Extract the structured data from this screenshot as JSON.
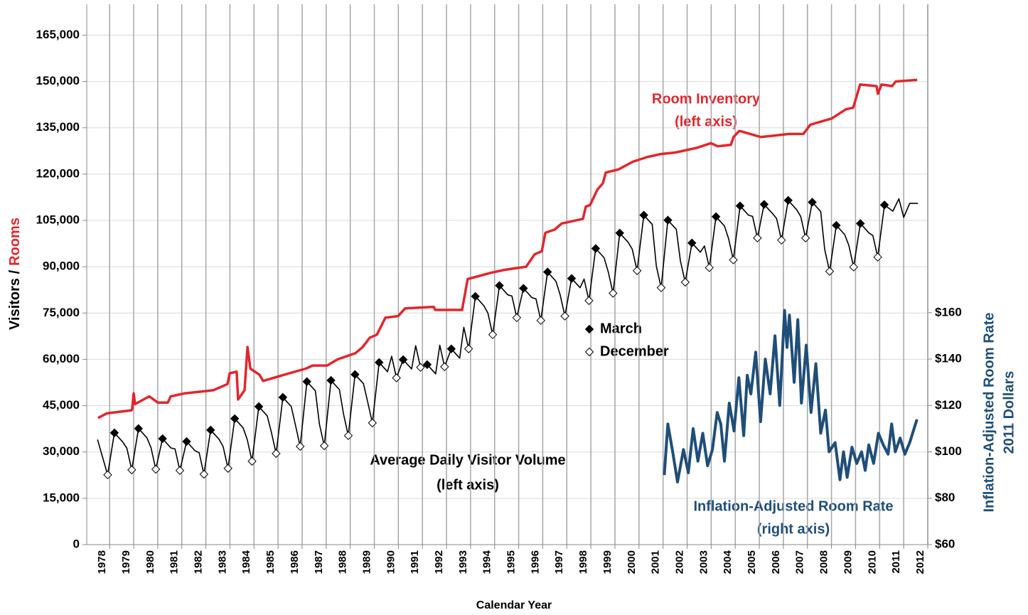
{
  "chart_data": {
    "type": "line",
    "x_label": "Calendar Year",
    "y_label": [
      "Visitors /",
      "Rooms"
    ],
    "y2_label": [
      "Inflation-Adjusted Room Rate",
      "2011 Dollars"
    ],
    "xlim": [
      1977.05,
      2012
    ],
    "xticks": [
      1978,
      1979,
      1980,
      1981,
      1982,
      1983,
      1984,
      1985,
      1986,
      1987,
      1988,
      1989,
      1990,
      1991,
      1992,
      1993,
      1994,
      1995,
      1996,
      1997,
      1998,
      1999,
      2000,
      2001,
      2002,
      2003,
      2004,
      2005,
      2006,
      2007,
      2008,
      2009,
      2010,
      2011,
      2012
    ],
    "ylim": [
      0,
      175000
    ],
    "yticks": [
      0,
      {
        "value": 15000,
        "label": "15,000"
      },
      {
        "value": 30000,
        "label": "30,000"
      },
      {
        "value": 45000,
        "label": "45,000"
      },
      {
        "value": 60000,
        "label": "60,000"
      },
      {
        "value": 75000,
        "label": "75,000"
      },
      {
        "value": 90000,
        "label": "90,000"
      },
      {
        "value": 105000,
        "label": "105,000"
      },
      {
        "value": 120000,
        "label": "120,000"
      },
      {
        "value": 135000,
        "label": "135,000"
      },
      {
        "value": 150000,
        "label": "150,000"
      },
      {
        "value": 165000,
        "label": "165,000"
      }
    ],
    "y2lim": [
      60,
      293
    ],
    "y2ticks": [
      {
        "value": 60,
        "label": "$60"
      },
      {
        "value": 80,
        "label": "$80"
      },
      {
        "value": 100,
        "label": "$100"
      },
      {
        "value": 120,
        "label": "$120"
      },
      {
        "value": 140,
        "label": "$140"
      },
      {
        "value": 160,
        "label": "$160"
      }
    ],
    "grid": true,
    "annotations": [
      "(left axis)",
      "(left axis)",
      "(right axis)"
    ],
    "series": [
      {
        "name": "Room Inventory",
        "color": "#e3262c",
        "style": "line",
        "x": [
          1977.52,
          1977.88,
          1978.91,
          1978.94,
          1979.0,
          1979.06,
          1979.65,
          1980.0,
          1980.42,
          1980.54,
          1981.13,
          1982.31,
          1982.9,
          1982.99,
          1983.28,
          1983.34,
          1983.61,
          1983.73,
          1983.85,
          1984.23,
          1984.38,
          1985.26,
          1986.15,
          1986.44,
          1987.04,
          1987.48,
          1988.22,
          1988.52,
          1988.81,
          1989.11,
          1989.46,
          1989.99,
          1990.28,
          1991.47,
          1991.53,
          1992.65,
          1992.88,
          1993.83,
          1994.42,
          1995.31,
          1995.66,
          1995.96,
          1996.11,
          1996.49,
          1996.79,
          1997.67,
          1997.79,
          1997.97,
          1998.27,
          1998.5,
          1998.62,
          1999.15,
          1999.74,
          2000.33,
          2000.92,
          2001.51,
          2002.4,
          2002.99,
          2003.28,
          2003.82,
          2003.93,
          2004.17,
          2005.06,
          2006.24,
          2006.83,
          2007.12,
          2008.01,
          2008.6,
          2008.9,
          2009.19,
          2009.87,
          2009.93,
          2010.08,
          2010.52,
          2010.67,
          2011.56
        ],
        "values": [
          41000,
          42500,
          43500,
          44000,
          49000,
          45500,
          48000,
          46000,
          46000,
          48000,
          49000,
          50000,
          52000,
          55500,
          56000,
          47000,
          50000,
          64000,
          57000,
          55000,
          53000,
          55000,
          57000,
          58000,
          58000,
          60000,
          62000,
          64000,
          67000,
          68000,
          73500,
          74000,
          76500,
          77000,
          76000,
          76000,
          86000,
          88000,
          89000,
          90000,
          94000,
          95000,
          101000,
          102000,
          104000,
          105500,
          109500,
          110000,
          115000,
          117000,
          120500,
          121500,
          124000,
          125500,
          126500,
          127000,
          128500,
          130000,
          129000,
          129500,
          132000,
          134000,
          132000,
          133000,
          133000,
          136000,
          138000,
          141000,
          141500,
          149000,
          148500,
          146000,
          149000,
          148500,
          150000,
          150500
        ]
      },
      {
        "name": "Average Daily Visitor Volume",
        "color": "#000000",
        "style": "line",
        "x": [
          1977.5,
          1977.92,
          1978.2,
          1978.55,
          1978.72,
          1978.92,
          1979.2,
          1979.55,
          1979.72,
          1979.92,
          1980.2,
          1980.55,
          1980.72,
          1980.92,
          1981.2,
          1981.55,
          1981.72,
          1981.92,
          1982.2,
          1982.55,
          1982.72,
          1982.92,
          1983.2,
          1983.55,
          1983.72,
          1983.92,
          1984.2,
          1984.55,
          1984.72,
          1984.92,
          1985.2,
          1985.55,
          1985.72,
          1985.92,
          1986.2,
          1986.55,
          1986.72,
          1986.92,
          1987.2,
          1987.55,
          1987.72,
          1987.92,
          1988.2,
          1988.55,
          1988.72,
          1988.92,
          1989.2,
          1989.55,
          1989.72,
          1989.92,
          1990.2,
          1990.55,
          1990.72,
          1990.92,
          1991.2,
          1991.55,
          1991.72,
          1991.92,
          1992.2,
          1992.55,
          1992.72,
          1992.92,
          1993.2,
          1993.55,
          1993.72,
          1993.92,
          1994.2,
          1994.55,
          1994.72,
          1994.92,
          1995.2,
          1995.55,
          1995.72,
          1995.92,
          1996.2,
          1996.55,
          1996.72,
          1996.92,
          1997.2,
          1997.55,
          1997.72,
          1997.92,
          1998.2,
          1998.55,
          1998.72,
          1998.92,
          1999.2,
          1999.55,
          1999.72,
          1999.92,
          2000.2,
          2000.55,
          2000.72,
          2000.92,
          2001.2,
          2001.55,
          2001.72,
          2001.92,
          2002.2,
          2002.55,
          2002.72,
          2002.92,
          2003.2,
          2003.55,
          2003.72,
          2003.92,
          2004.2,
          2004.55,
          2004.72,
          2004.92,
          2005.2,
          2005.55,
          2005.72,
          2005.92,
          2006.2,
          2006.55,
          2006.72,
          2006.92,
          2007.2,
          2007.55,
          2007.72,
          2007.92,
          2008.2,
          2008.55,
          2008.72,
          2008.92,
          2009.2,
          2009.55,
          2009.72,
          2009.92,
          2010.2,
          2010.55,
          2010.8,
          2011.0,
          2011.25,
          2011.59
        ],
        "values": [
          34000,
          22600,
          36200,
          33200,
          31200,
          24200,
          37600,
          34600,
          31400,
          24400,
          34300,
          31300,
          31000,
          24000,
          33400,
          30400,
          29800,
          22800,
          37100,
          34100,
          31700,
          24700,
          40800,
          37800,
          34000,
          27000,
          44700,
          41700,
          36500,
          29500,
          47700,
          44700,
          38800,
          31800,
          52800,
          49800,
          39000,
          32000,
          53200,
          50200,
          42300,
          35300,
          55100,
          52100,
          46400,
          39400,
          59000,
          56000,
          61000,
          54000,
          59900,
          56900,
          64400,
          57400,
          58300,
          55300,
          64600,
          57600,
          63400,
          60400,
          70400,
          63400,
          80400,
          77400,
          75000,
          68000,
          83900,
          80900,
          80500,
          73500,
          83000,
          80000,
          79600,
          72600,
          88300,
          85300,
          81000,
          74000,
          86200,
          83200,
          86000,
          79000,
          95900,
          92900,
          88400,
          81400,
          100900,
          97900,
          95700,
          88700,
          106700,
          103700,
          90200,
          83200,
          105100,
          102100,
          92000,
          85000,
          97700,
          94700,
          96700,
          89700,
          106200,
          103200,
          99200,
          92200,
          109700,
          106700,
          106300,
          99300,
          110200,
          107200,
          105600,
          98600,
          111500,
          108500,
          106300,
          99300,
          110900,
          107900,
          95500,
          88500,
          103400,
          100400,
          96900,
          89900,
          104000,
          101000,
          100100,
          93100,
          110000,
          108000,
          112000,
          106000,
          110500,
          110500
        ]
      },
      {
        "name": "March",
        "color": "#000000",
        "style": "markers",
        "marker_fill": "#000000",
        "x": [
          1978.2,
          1979.2,
          1980.2,
          1981.2,
          1982.2,
          1983.2,
          1984.2,
          1985.2,
          1986.2,
          1987.2,
          1988.2,
          1989.2,
          1990.2,
          1991.2,
          1992.2,
          1993.2,
          1994.2,
          1995.2,
          1996.2,
          1997.2,
          1998.2,
          1999.2,
          2000.2,
          2001.2,
          2002.2,
          2003.2,
          2004.2,
          2005.2,
          2006.2,
          2007.2,
          2008.2,
          2009.2,
          2010.2
        ],
        "values": [
          36200,
          37600,
          34300,
          33400,
          37100,
          40800,
          44700,
          47700,
          52800,
          53200,
          55100,
          59000,
          59900,
          58300,
          63400,
          80400,
          83900,
          83000,
          88300,
          86200,
          95900,
          100900,
          106700,
          105100,
          97700,
          106200,
          109700,
          110200,
          111500,
          110900,
          103400,
          104000,
          110000
        ]
      },
      {
        "name": "December",
        "color": "#000000",
        "style": "markers",
        "marker_fill": "#ffffff",
        "x": [
          1977.92,
          1978.92,
          1979.92,
          1980.92,
          1981.92,
          1982.92,
          1983.92,
          1984.92,
          1985.92,
          1986.92,
          1987.92,
          1988.92,
          1989.92,
          1990.92,
          1991.92,
          1992.92,
          1993.92,
          1994.92,
          1995.92,
          1996.92,
          1997.92,
          1998.92,
          1999.92,
          2000.92,
          2001.92,
          2002.92,
          2003.92,
          2004.92,
          2005.92,
          2006.92,
          2007.92,
          2008.92,
          2009.92
        ],
        "values": [
          22600,
          24200,
          24400,
          24000,
          22800,
          24700,
          27000,
          29500,
          31800,
          32000,
          35300,
          39400,
          54000,
          57400,
          57600,
          63400,
          68000,
          73500,
          72600,
          74000,
          79000,
          81400,
          88700,
          83200,
          85000,
          89700,
          92200,
          99300,
          98600,
          99300,
          88500,
          89900,
          93100
        ]
      },
      {
        "name": "Inflation-Adjusted Room Rate",
        "color": "#1f4e79",
        "style": "line",
        "axis": "y2",
        "x": [
          2001.05,
          2001.2,
          2001.4,
          2001.6,
          2001.85,
          2002.05,
          2002.25,
          2002.45,
          2002.65,
          2002.85,
          2003.05,
          2003.25,
          2003.4,
          2003.55,
          2003.75,
          2003.95,
          2004.15,
          2004.35,
          2004.5,
          2004.65,
          2004.85,
          2005.05,
          2005.25,
          2005.45,
          2005.65,
          2005.85,
          2006.05,
          2006.15,
          2006.25,
          2006.45,
          2006.6,
          2006.75,
          2006.95,
          2007.15,
          2007.35,
          2007.55,
          2007.75,
          2007.9,
          2008.15,
          2008.35,
          2008.5,
          2008.65,
          2008.85,
          2009.05,
          2009.25,
          2009.4,
          2009.55,
          2009.75,
          2009.95,
          2010.15,
          2010.35,
          2010.5,
          2010.65,
          2010.85,
          2011.05,
          2011.25,
          2011.55
        ],
        "values": [
          90,
          112,
          100,
          87,
          101,
          91,
          110,
          96,
          108,
          94,
          101,
          117,
          112,
          96,
          121,
          109,
          132,
          107,
          133,
          125,
          143,
          113,
          140,
          125,
          150,
          120,
          161,
          145,
          159,
          130,
          157,
          121,
          146,
          117,
          138,
          108,
          118,
          100,
          104,
          88,
          100,
          89,
          102,
          95,
          100,
          92,
          103,
          95,
          108,
          103,
          99,
          112,
          100,
          106,
          99,
          104,
          114
        ]
      }
    ]
  }
}
